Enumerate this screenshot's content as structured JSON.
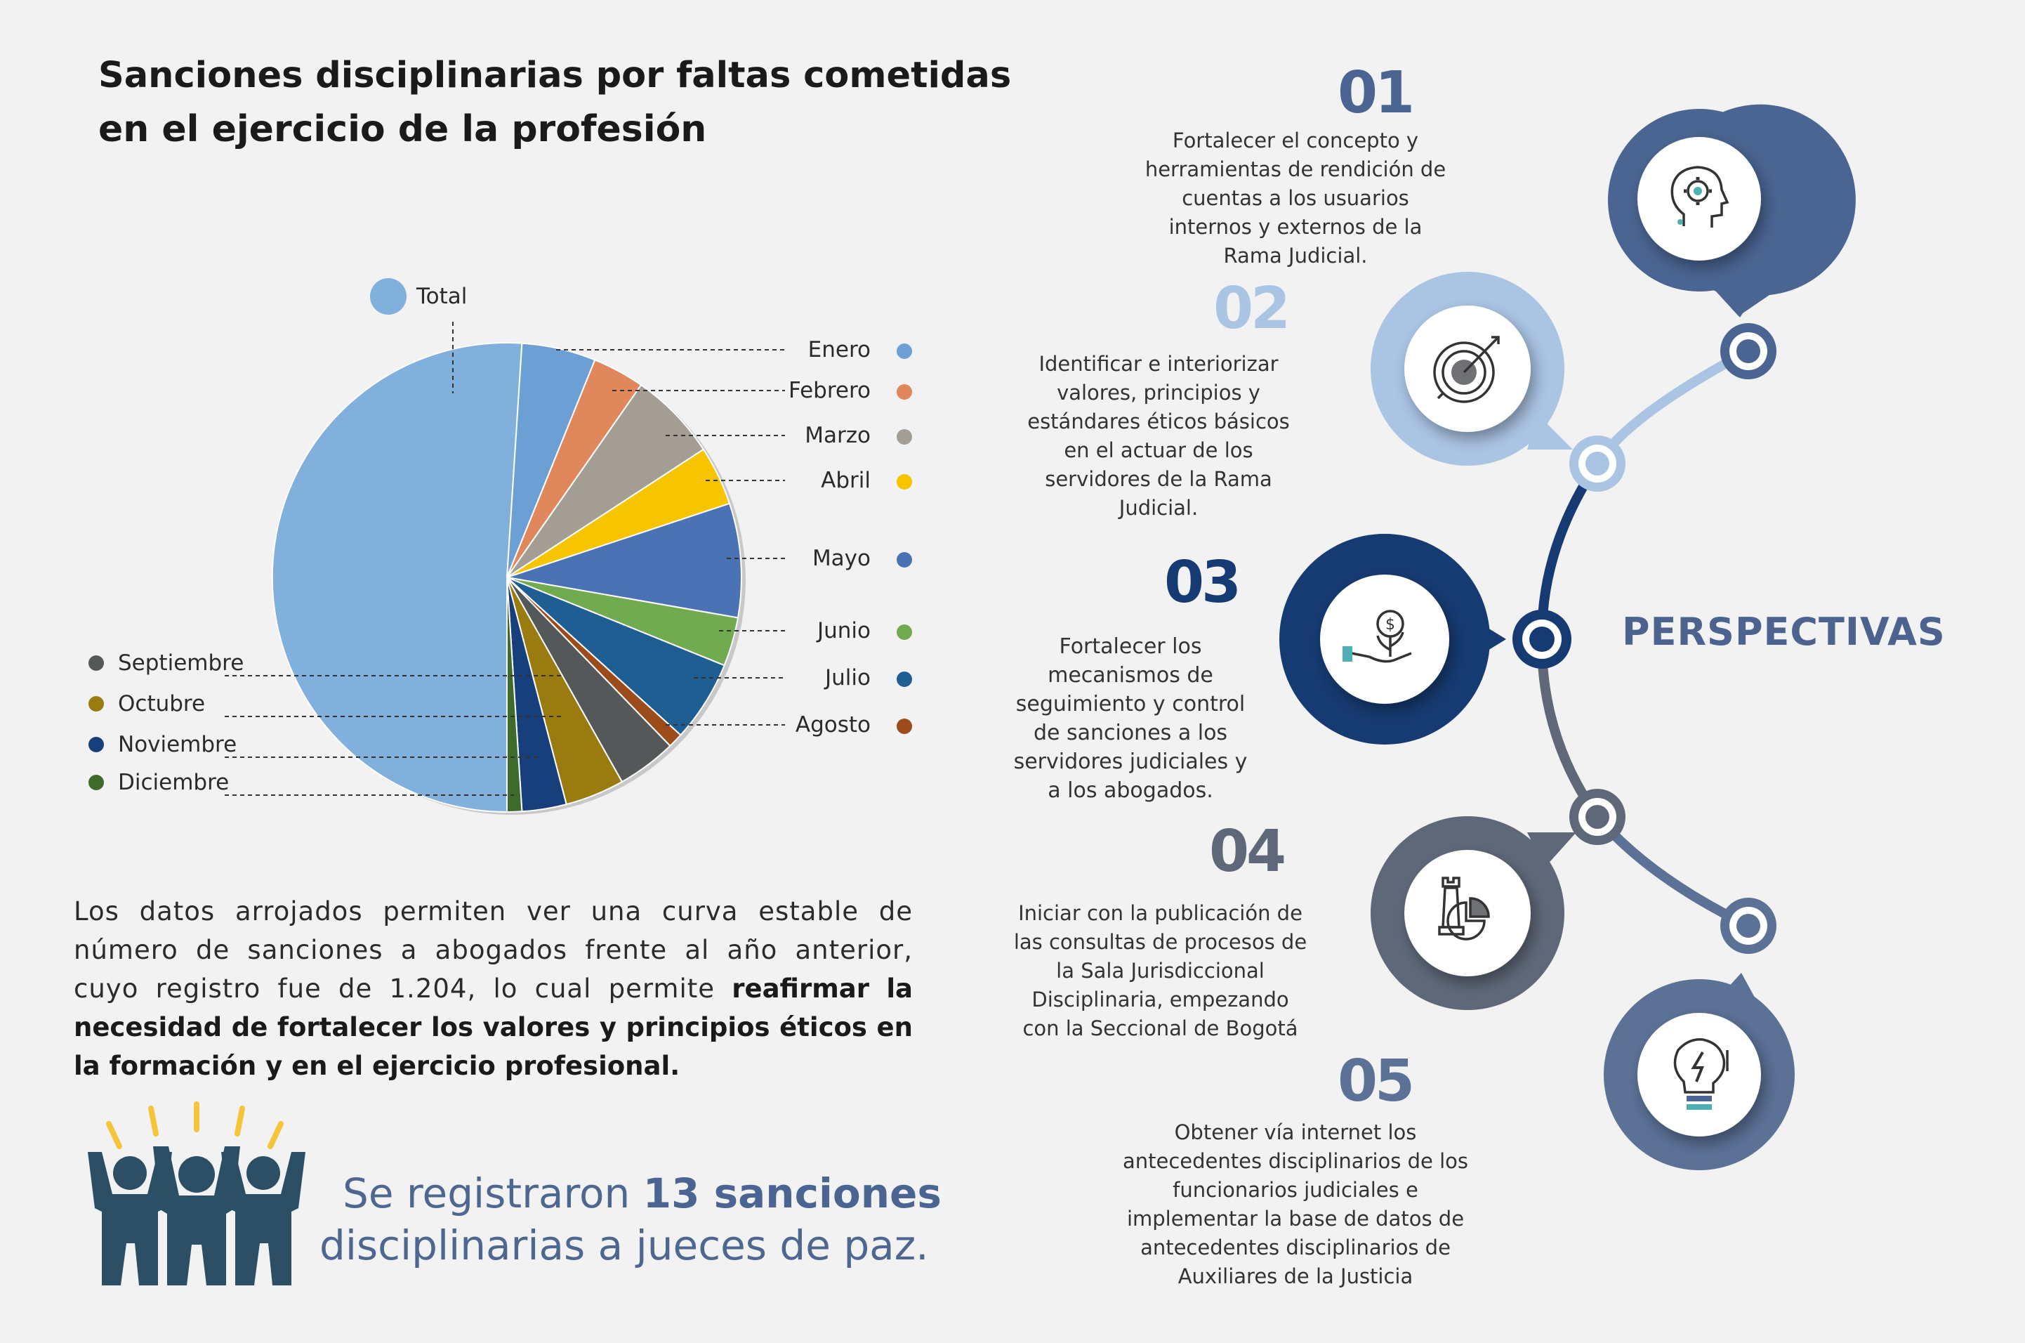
{
  "header": {
    "title_line1": "Sanciones disciplinarias por faltas cometidas",
    "title_line2": "en el ejercicio de la profesión"
  },
  "chart_data": {
    "type": "pie",
    "legend": {
      "total_label": "Total",
      "left_labels": [
        "Septiembre",
        "Octubre",
        "Noviembre",
        "Diciembre"
      ],
      "right_labels": [
        "Enero",
        "Febrero",
        "Marzo",
        "Abril",
        "Mayo",
        "Junio",
        "Julio",
        "Agosto"
      ]
    },
    "categories": [
      "Total",
      "Enero",
      "Febrero",
      "Marzo",
      "Abril",
      "Mayo",
      "Junio",
      "Julio",
      "Agosto",
      "Septiembre",
      "Octubre",
      "Noviembre",
      "Diciembre"
    ],
    "values": [
      50,
      5.0,
      3.5,
      6.0,
      4.0,
      7.7,
      3.3,
      5.5,
      1.0,
      4.0,
      4.0,
      3.0,
      1.0
    ],
    "colors": [
      "#82b0dc",
      "#6c9fd3",
      "#e0875c",
      "#a49d93",
      "#f6c500",
      "#4b72b5",
      "#72ab4f",
      "#1f5e93",
      "#9c4b1a",
      "#555859",
      "#9a7b10",
      "#163f7c",
      "#3e6b2a"
    ]
  },
  "body": {
    "p1": "Los datos arrojados permiten ver una curva estable de número de sanciones a abogados frente al año anterior, cuyo registro fue de 1.204, lo cual permite ",
    "p1_bold": "reafirmar la necesidad de fortalecer los valores y principios éticos en la formación y en el ejercicio profesional."
  },
  "slogan": {
    "pre": "Se registraron ",
    "bold": "13 sanciones",
    "line2": "disciplinarias a jueces de paz."
  },
  "perspectives": {
    "title": "PERSPECTIVAS",
    "items": [
      {
        "num": "01",
        "text": "Fortalecer el concepto y herramientas de rendición de cuentas a los usuarios internos y externos de la Rama Judicial.",
        "icon": "head-gear-icon",
        "color": "#4a6592"
      },
      {
        "num": "02",
        "text": "Identificar e interiorizar valores, principios y estándares éticos básicos en el actuar de los servidores de la Rama Judicial.",
        "icon": "target-icon",
        "color": "#aac4e4"
      },
      {
        "num": "03",
        "text": "Fortalecer los mecanismos de seguimiento y control de sanciones a los servidores judiciales y a los abogados.",
        "icon": "money-hand-icon",
        "color": "#163b72"
      },
      {
        "num": "04",
        "text": "Iniciar con la publicación de las consultas de procesos de la Sala Jurisdiccional Disciplinaria, empezando con la Seccional de Bogotá",
        "icon": "chess-chart-icon",
        "color": "#5f6879"
      },
      {
        "num": "05",
        "text": "Obtener vía internet los antecedentes disciplinarios de los funcionarios judiciales e implementar la base de datos de antecedentes disciplinarios de Auxiliares de la Justicia",
        "icon": "lightbulb-icon",
        "color": "#5b7196"
      }
    ]
  }
}
